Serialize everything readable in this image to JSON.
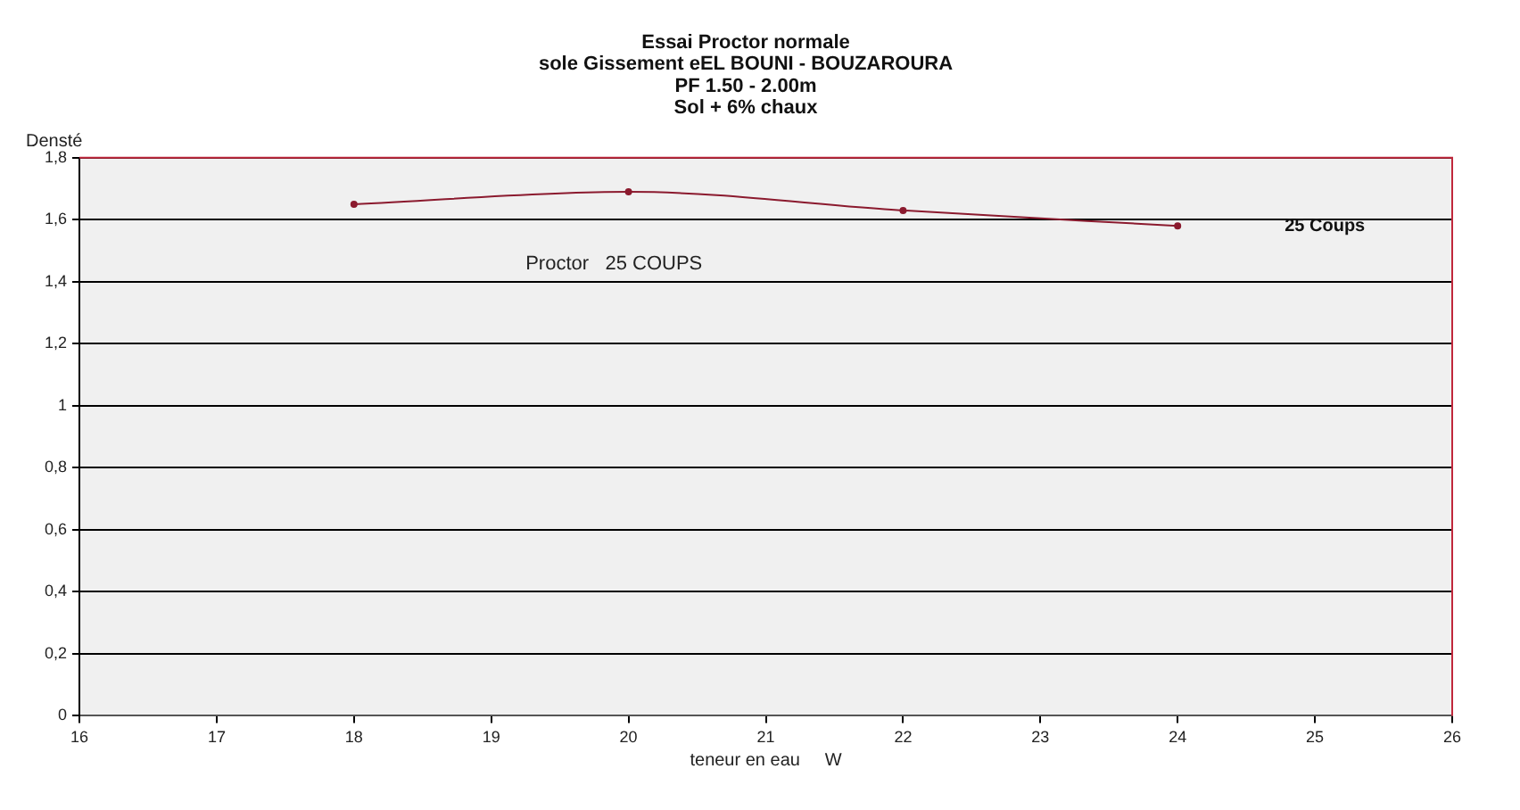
{
  "chart_data": {
    "type": "line",
    "title": "Essai Proctor normale",
    "subtitle": "sole Gissement eEL BOUNI - BOUZAROURA\nPF 1.50 - 2.00m\nSol + 6% chaux",
    "xlabel": "teneur en eau     W",
    "ylabel": "Densté",
    "x": [
      18,
      20,
      22,
      24
    ],
    "series": [
      {
        "name": "25 Coups",
        "color": "#8b1a2e",
        "values": [
          1.65,
          1.69,
          1.63,
          1.58
        ]
      }
    ],
    "xlim": [
      16,
      26
    ],
    "xticks": [
      16,
      17,
      18,
      19,
      20,
      21,
      22,
      23,
      24,
      25,
      26
    ],
    "ylim": [
      0,
      1.8
    ],
    "yticks": [
      0,
      {
        "value": 0.2,
        "label": "0,2"
      },
      {
        "value": 0.4,
        "label": "0,4"
      },
      {
        "value": 0.6,
        "label": "0,6"
      },
      {
        "value": 0.8,
        "label": "0,8"
      },
      1,
      {
        "value": 1.2,
        "label": "1,2"
      },
      {
        "value": 1.4,
        "label": "1,4"
      },
      {
        "value": 1.6,
        "label": "1,6"
      },
      {
        "value": 1.8,
        "label": "1,8"
      }
    ],
    "grid": "y",
    "legend": false,
    "marker": "circle",
    "line_style": "solid",
    "annotations": [
      "Proctor   25 COUPS"
    ]
  }
}
